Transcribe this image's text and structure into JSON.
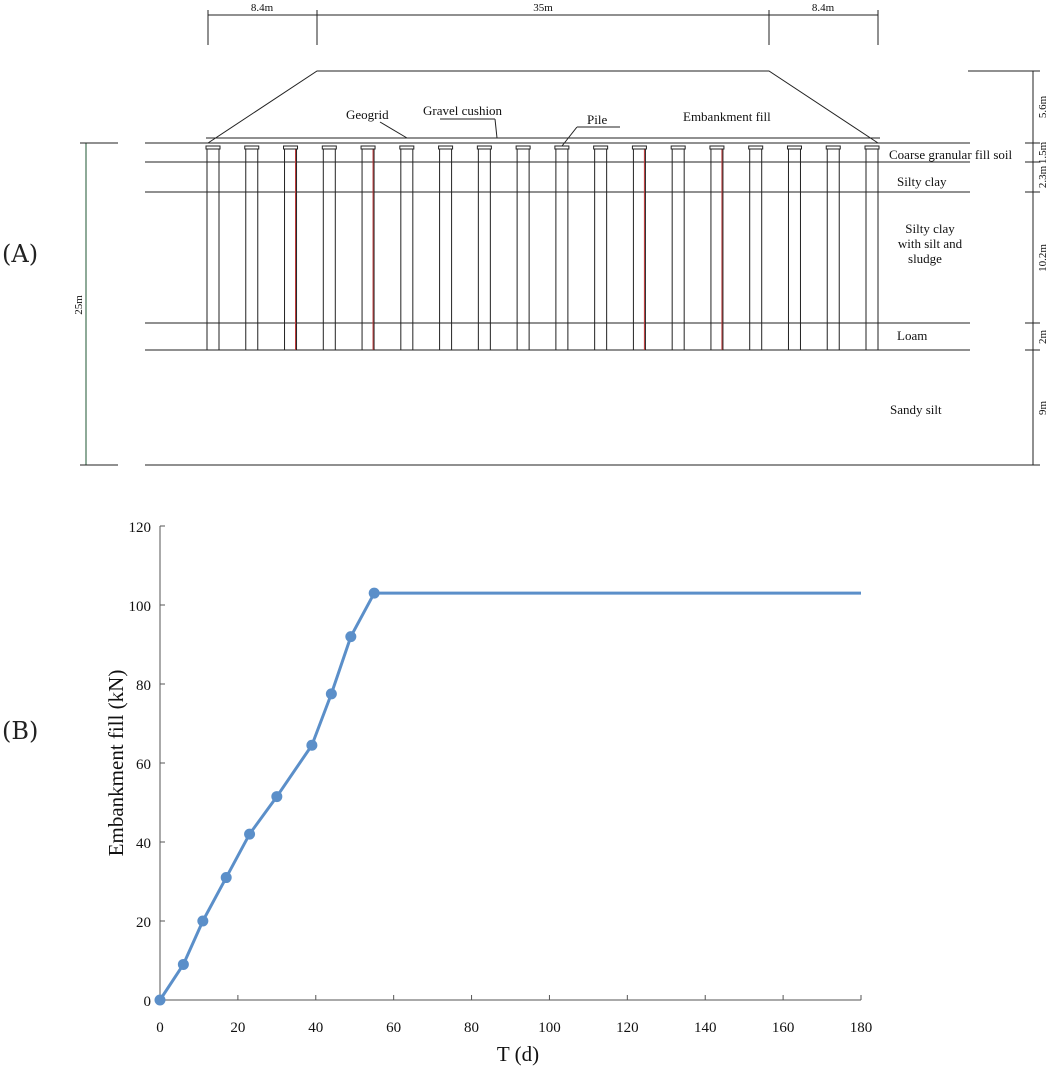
{
  "panels": {
    "a": "(A)",
    "b": "(B)"
  },
  "diagram": {
    "top_dims": [
      "8.4m",
      "35m",
      "8.4m"
    ],
    "left_dim": "25m",
    "right_dims": [
      "5.6m",
      "1.5m",
      "2.3m",
      "10.2m",
      "2m",
      "9m"
    ],
    "labels": {
      "geogrid": "Geogrid",
      "gravel": "Gravel cushion",
      "pile": "Pile",
      "embankment": "Embankment fill"
    },
    "layers": [
      {
        "lines": [
          "Coarse granular fill soil"
        ]
      },
      {
        "lines": [
          "Silty clay"
        ]
      },
      {
        "lines": [
          "Silty clay",
          "with silt and",
          "sludge"
        ]
      },
      {
        "lines": [
          "Loam"
        ]
      },
      {
        "lines": [
          "Sandy silt"
        ]
      }
    ],
    "pile_count": 18
  },
  "chart_data": {
    "type": "line",
    "xlabel": "T (d)",
    "ylabel": "Embankment fill (kN)",
    "xlim": [
      0,
      180
    ],
    "ylim": [
      0,
      120
    ],
    "xticks": [
      "0",
      "20",
      "40",
      "60",
      "80",
      "100",
      "120",
      "140",
      "160",
      "180"
    ],
    "yticks": [
      "0",
      "20",
      "40",
      "60",
      "80",
      "100",
      "120"
    ],
    "color": "#5b8fc9",
    "series": [
      {
        "points": [
          [
            0,
            0
          ],
          [
            6,
            9
          ],
          [
            11,
            20
          ],
          [
            17,
            31
          ],
          [
            23,
            42
          ],
          [
            30,
            51.5
          ],
          [
            39,
            64.5
          ],
          [
            44,
            77.5
          ],
          [
            49,
            92
          ],
          [
            55,
            103
          ],
          [
            180,
            103
          ]
        ],
        "marker_count": 10
      }
    ]
  }
}
